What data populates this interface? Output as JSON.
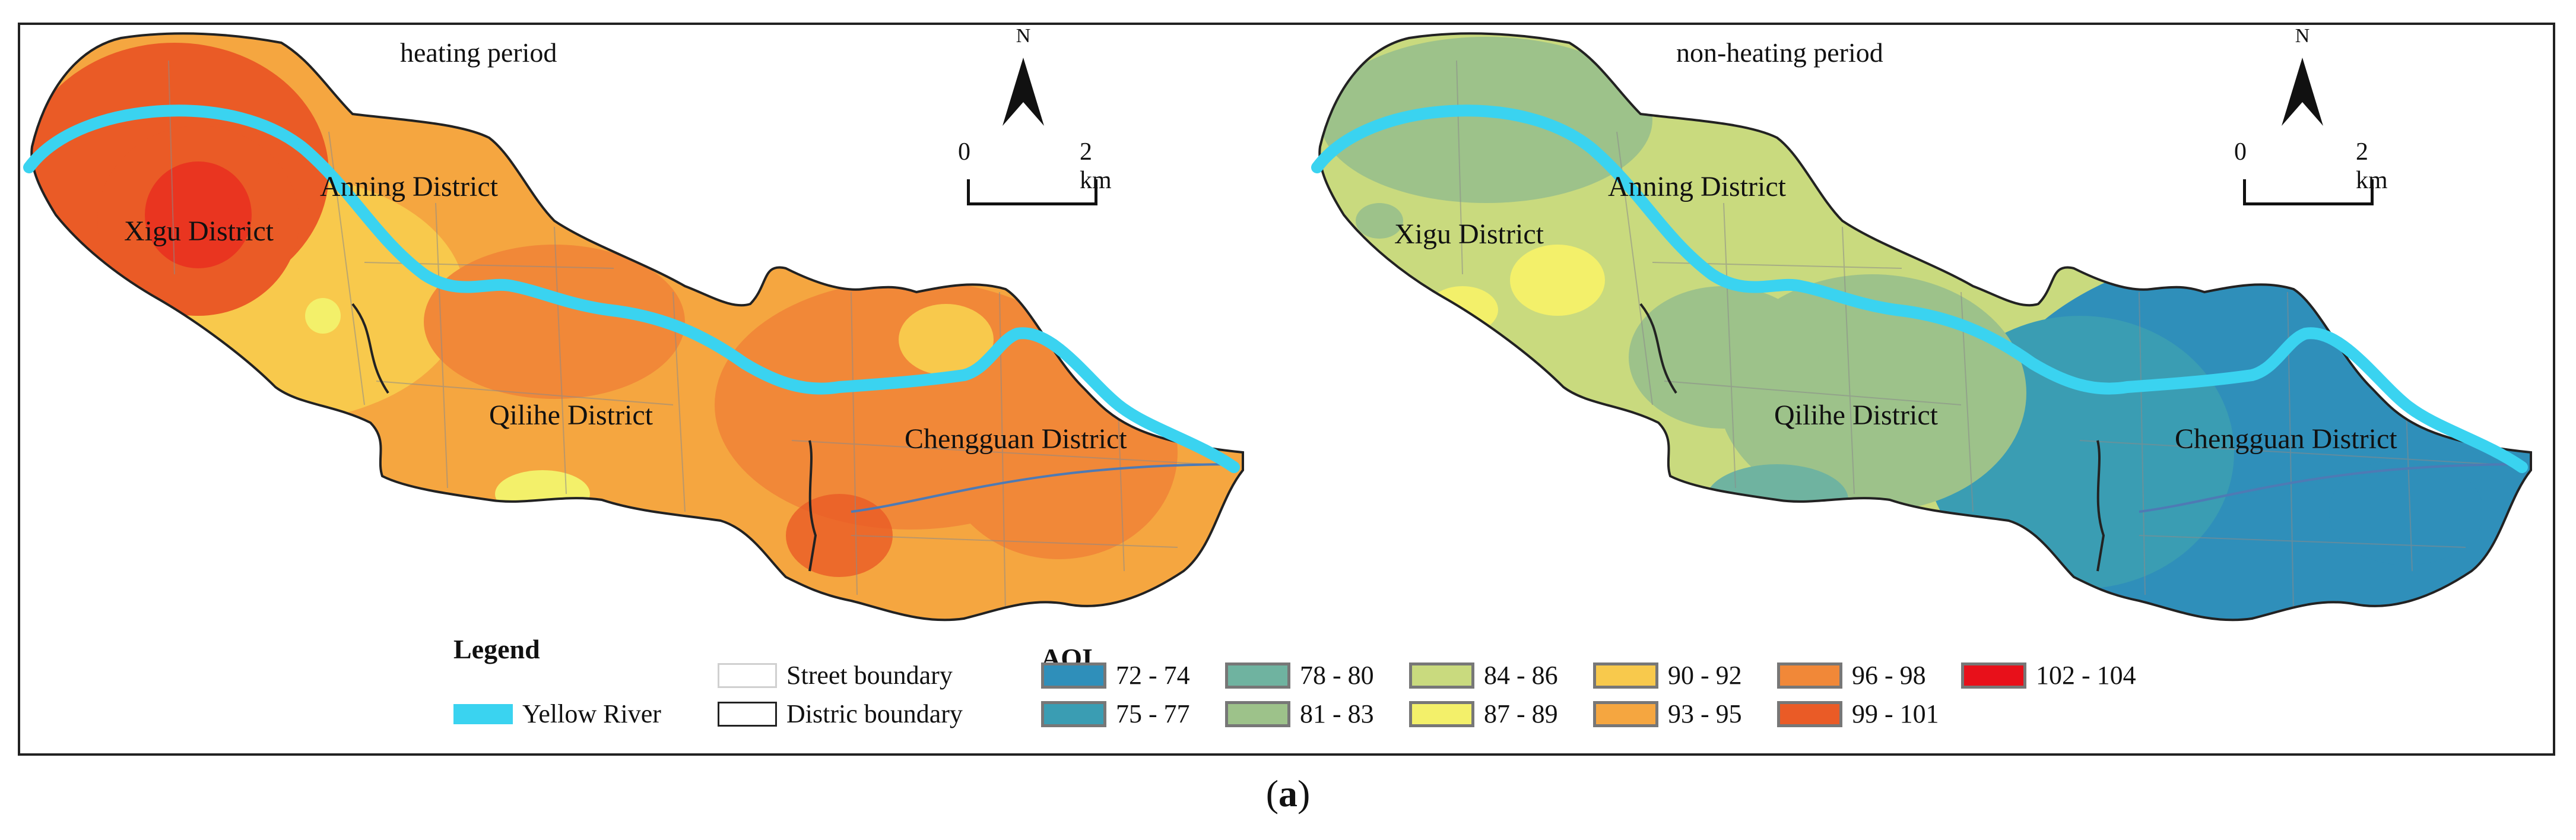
{
  "panels": {
    "left": {
      "title": "heating period",
      "districts": {
        "xigu": "Xigu District",
        "anning": "Anning District",
        "qilihe": "Qilihe District",
        "chengguan": "Chengguan District"
      }
    },
    "right": {
      "title": "non-heating period",
      "districts": {
        "xigu": "Xigu District",
        "anning": "Anning District",
        "qilihe": "Qilihe District",
        "chengguan": "Chengguan District"
      }
    }
  },
  "north_arrow": {
    "label": "N"
  },
  "scale_bar": {
    "start": "0",
    "end": "2 km"
  },
  "legend": {
    "title": "Legend",
    "items": {
      "street_boundary": "Street boundary",
      "district_boundary": "Distric boundary",
      "yellow_river": "Yellow River"
    },
    "colors": {
      "street_boundary": "#d9d9d9",
      "district_boundary": "#222222",
      "yellow_river": "#3ad3f0"
    }
  },
  "aqi": {
    "title": "AQI",
    "classes": [
      {
        "label": "72 - 74",
        "color": "#2f8fba"
      },
      {
        "label": "75 - 77",
        "color": "#3a9db3"
      },
      {
        "label": "78 - 80",
        "color": "#6fb3a0"
      },
      {
        "label": "81 - 83",
        "color": "#9dc28a"
      },
      {
        "label": "84 - 86",
        "color": "#c9da7e"
      },
      {
        "label": "87 - 89",
        "color": "#f3f06a"
      },
      {
        "label": "90 - 92",
        "color": "#f8c94c"
      },
      {
        "label": "93 - 95",
        "color": "#f5a640"
      },
      {
        "label": "96 - 98",
        "color": "#f18838"
      },
      {
        "label": "99 - 101",
        "color": "#ea5b26"
      },
      {
        "label": "102 - 104",
        "color": "#e8101a"
      }
    ]
  },
  "caption": {
    "open": "(",
    "letter": "a",
    "close": ")"
  }
}
